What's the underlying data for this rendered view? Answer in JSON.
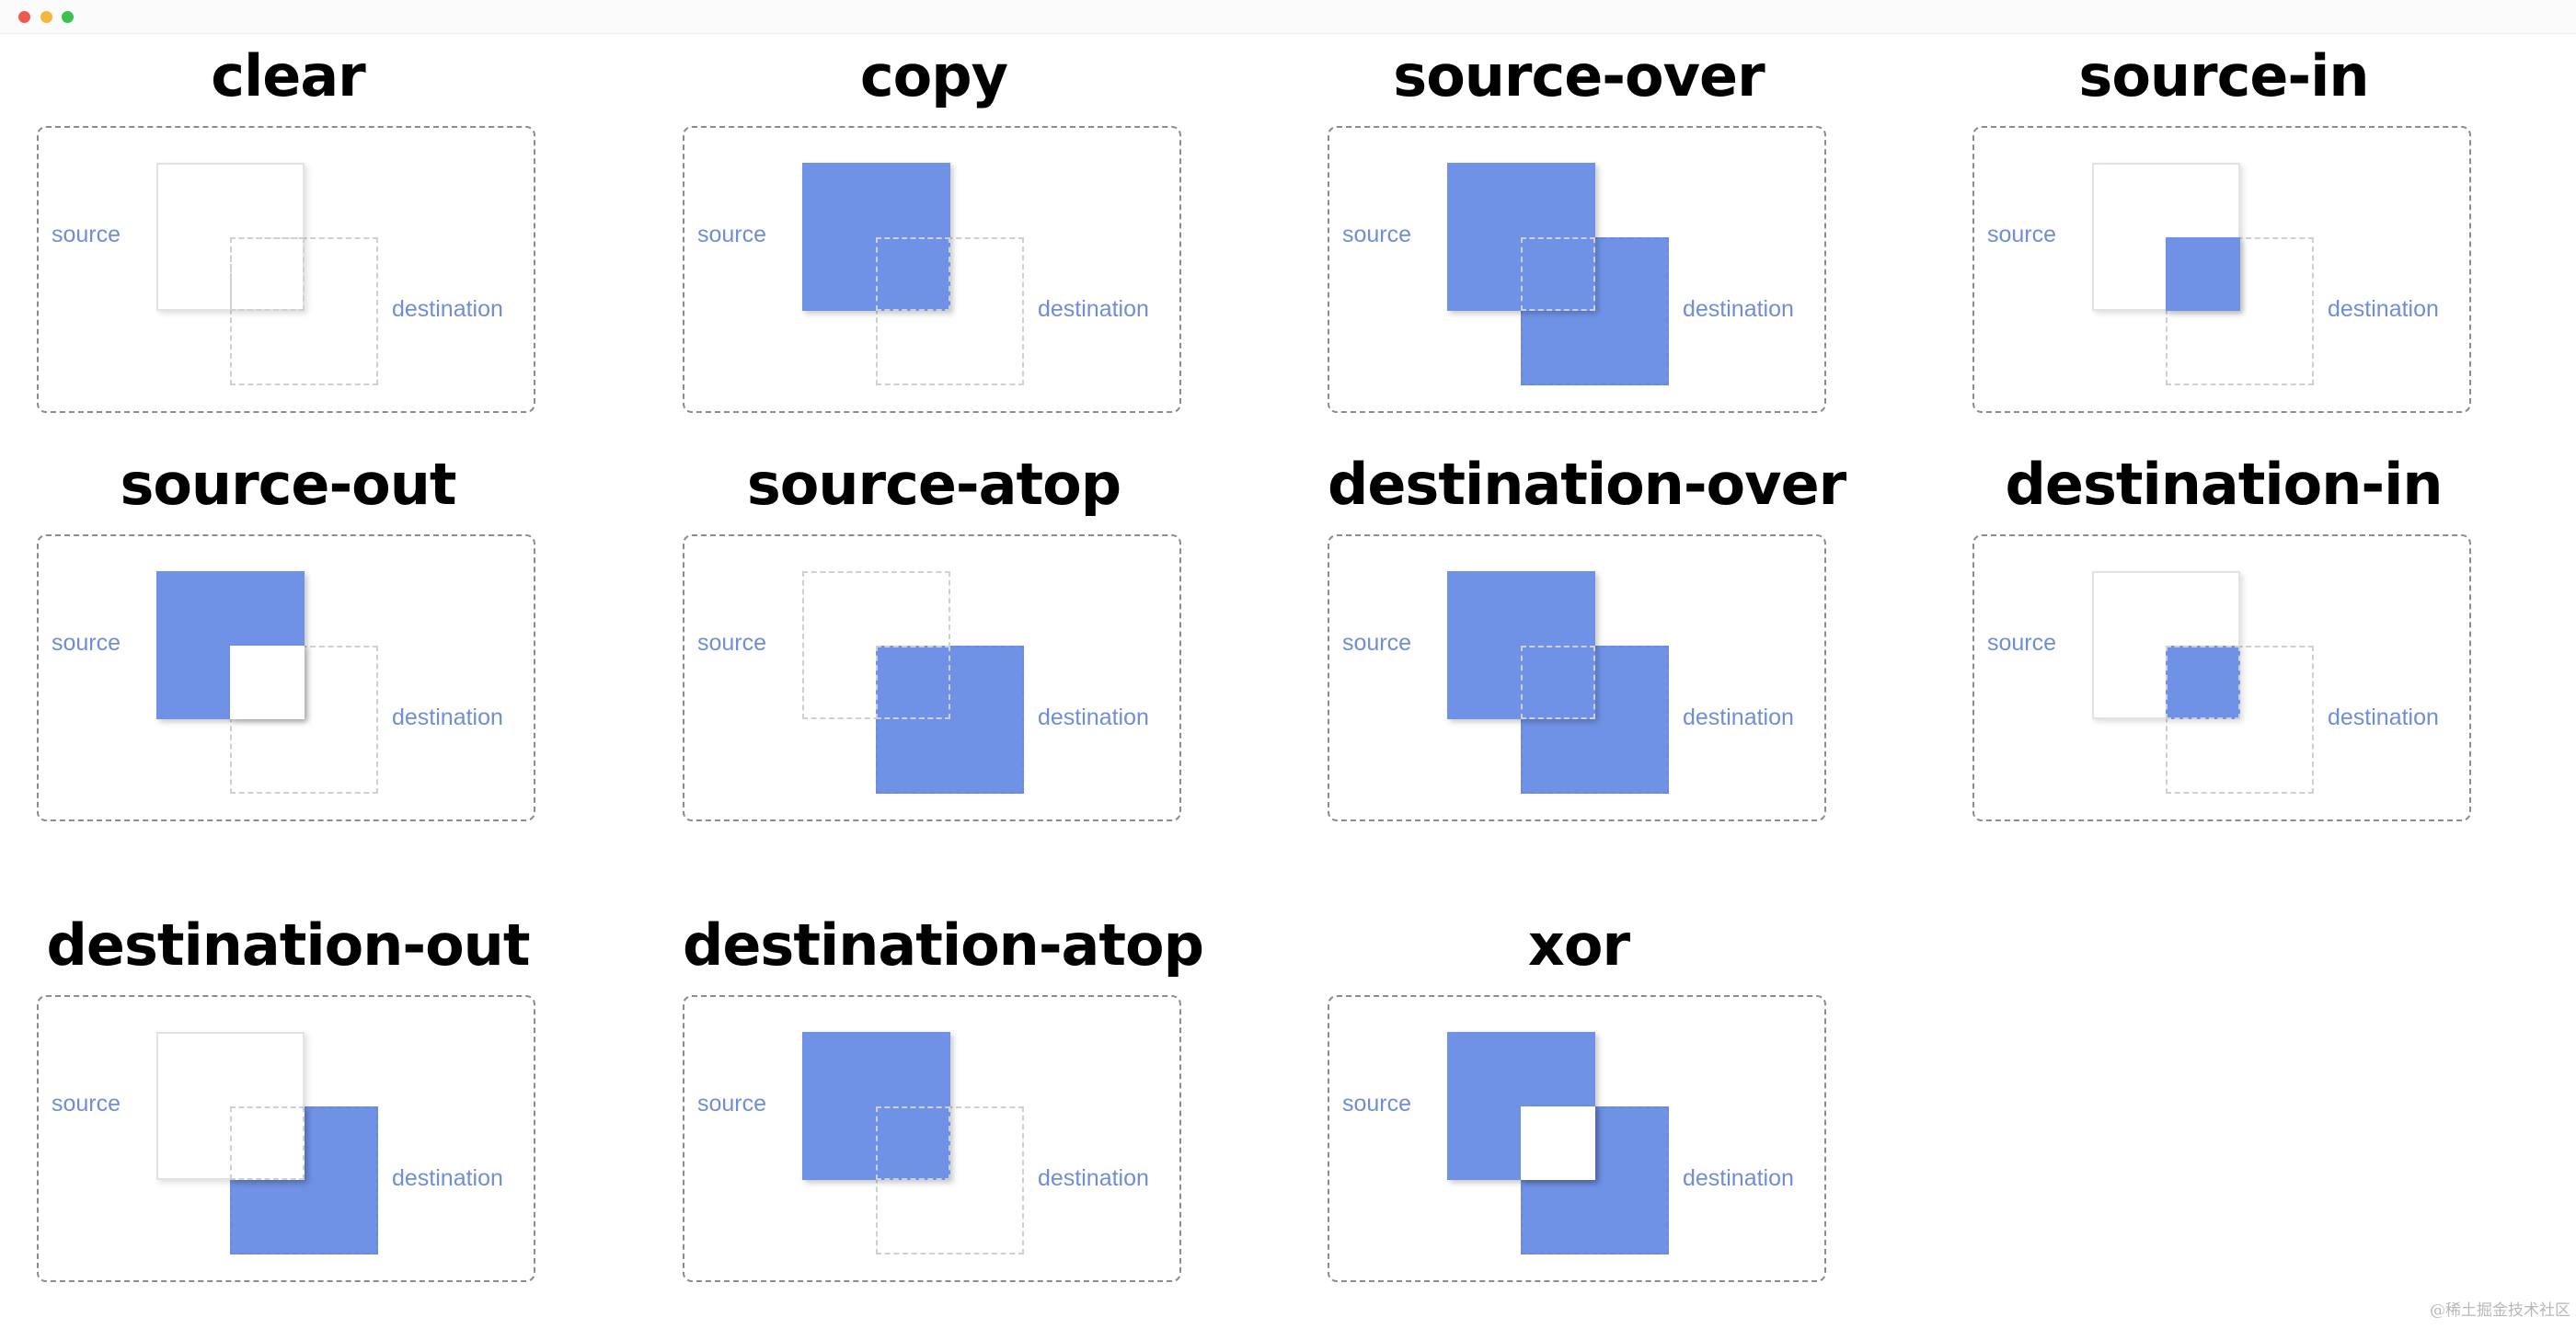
{
  "window": {
    "controls": [
      {
        "name": "close",
        "color": "#ee5a4f"
      },
      {
        "name": "minimize",
        "color": "#f4b73e"
      },
      {
        "name": "zoom",
        "color": "#39c24d"
      }
    ]
  },
  "colors": {
    "fill": "#7092e6",
    "label": "#6f8ed8",
    "panel_border": "#8c8c8c",
    "outline": "#cfcfd6"
  },
  "labels": {
    "source": "source",
    "destination": "destination"
  },
  "modes": [
    {
      "name": "clear",
      "source_only": "empty",
      "overlap": "empty",
      "destination_only": "empty"
    },
    {
      "name": "copy",
      "source_only": "source",
      "overlap": "source",
      "destination_only": "empty"
    },
    {
      "name": "source-over",
      "source_only": "source",
      "overlap": "source",
      "destination_only": "destination"
    },
    {
      "name": "source-in",
      "source_only": "empty",
      "overlap": "source",
      "destination_only": "empty"
    },
    {
      "name": "source-out",
      "source_only": "source",
      "overlap": "empty",
      "destination_only": "empty"
    },
    {
      "name": "source-atop",
      "source_only": "empty",
      "overlap": "source",
      "destination_only": "destination"
    },
    {
      "name": "destination-over",
      "source_only": "source",
      "overlap": "destination",
      "destination_only": "destination"
    },
    {
      "name": "destination-in",
      "source_only": "empty",
      "overlap": "destination",
      "destination_only": "empty"
    },
    {
      "name": "destination-out",
      "source_only": "empty",
      "overlap": "empty",
      "destination_only": "destination"
    },
    {
      "name": "destination-atop",
      "source_only": "source",
      "overlap": "destination",
      "destination_only": "empty"
    },
    {
      "name": "xor",
      "source_only": "source",
      "overlap": "empty",
      "destination_only": "destination"
    }
  ],
  "watermark": "@稀土掘金技术社区"
}
